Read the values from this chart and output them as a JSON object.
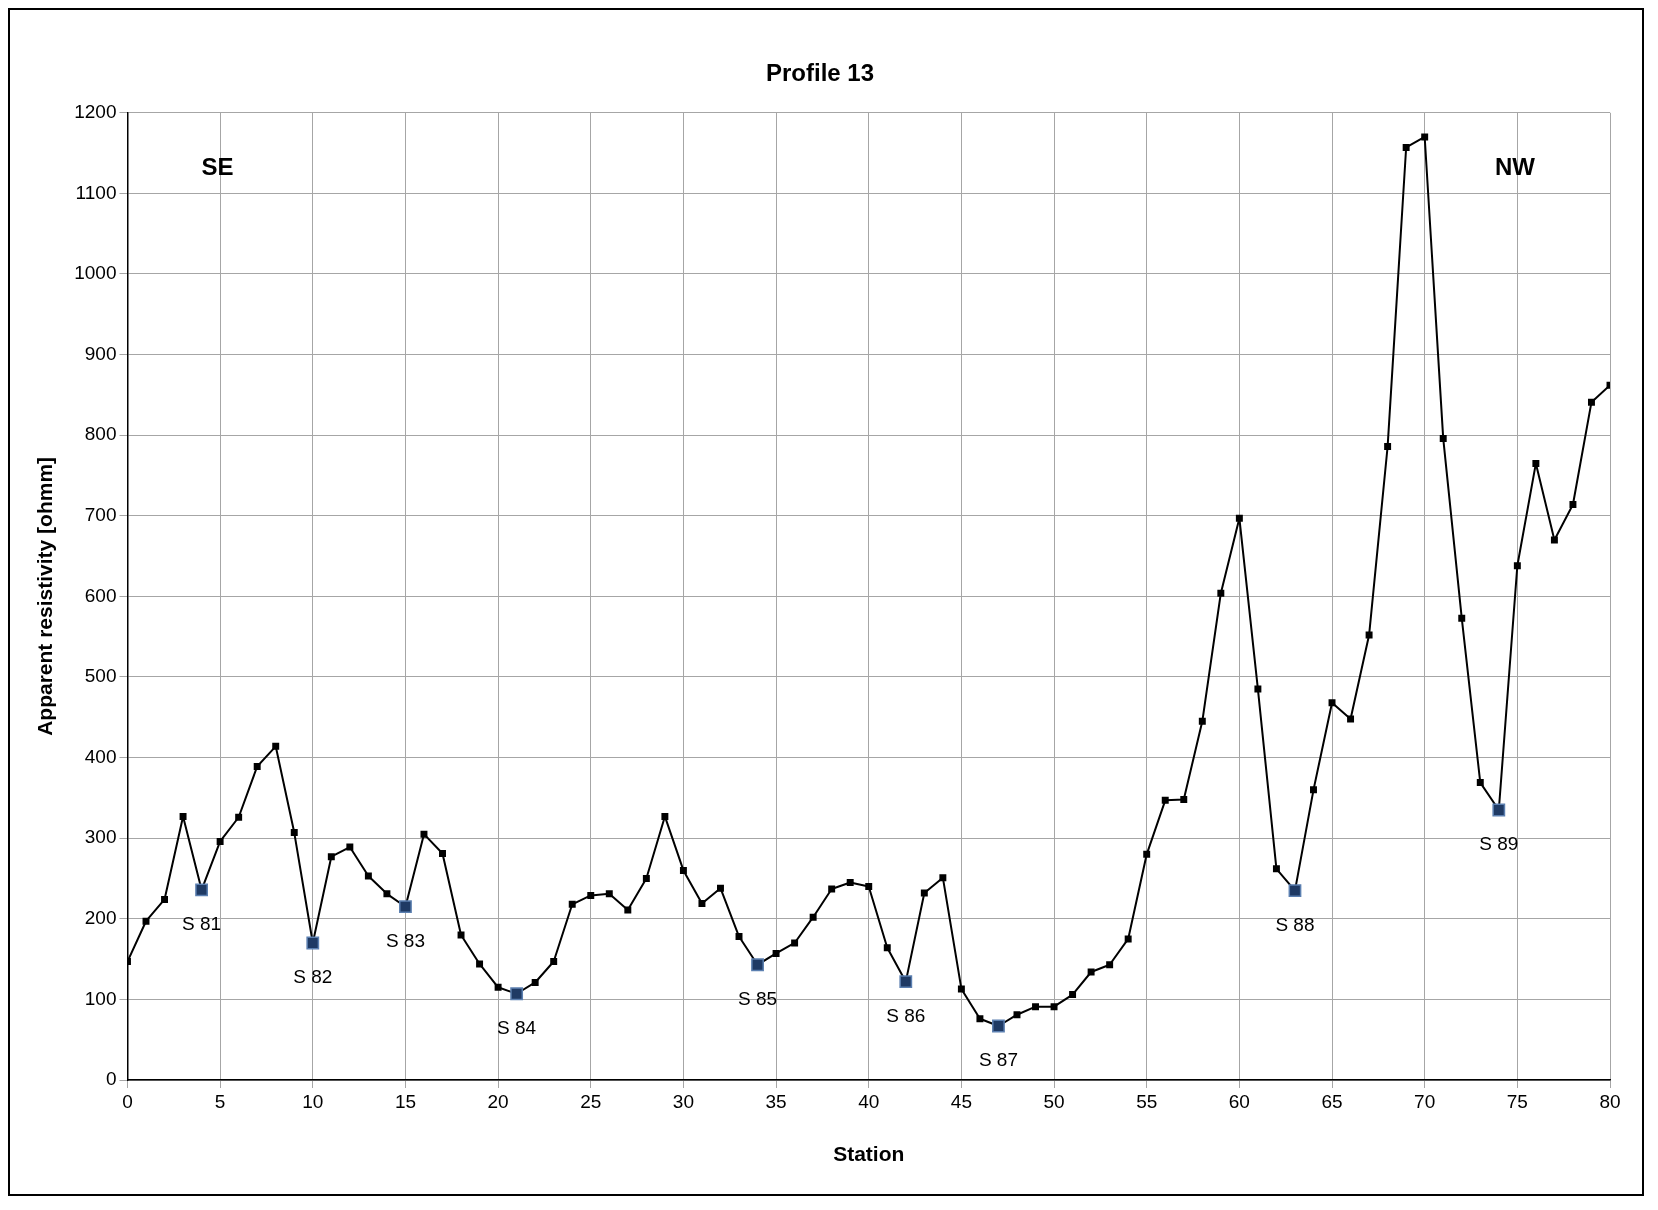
{
  "chart_data": {
    "type": "line",
    "title": "Profile 13",
    "xlabel": "Station",
    "ylabel": "Apparent resistivity [ohmm]",
    "x": [
      0,
      1,
      2,
      3,
      4,
      5,
      6,
      7,
      8,
      9,
      10,
      11,
      12,
      13,
      14,
      15,
      16,
      17,
      18,
      19,
      20,
      21,
      22,
      23,
      24,
      25,
      26,
      27,
      28,
      29,
      30,
      31,
      32,
      33,
      34,
      35,
      36,
      37,
      38,
      39,
      40,
      41,
      42,
      43,
      44,
      45,
      46,
      47,
      48,
      49,
      50,
      51,
      52,
      53,
      54,
      55,
      56,
      57,
      58,
      59,
      60,
      61,
      62,
      63,
      64,
      65,
      66,
      67,
      68,
      69,
      70,
      71,
      72,
      73,
      74,
      75,
      76,
      77,
      78,
      79,
      80
    ],
    "series": [
      {
        "color": "#000000",
        "marker": "square",
        "values": [
          147,
          197,
          224,
          327,
          236,
          296,
          326,
          389,
          414,
          307,
          170,
          277,
          289,
          253,
          231,
          215,
          305,
          281,
          180,
          144,
          115,
          107,
          121,
          147,
          218,
          229,
          231,
          211,
          250,
          327,
          260,
          219,
          238,
          178,
          143,
          157,
          170,
          202,
          237,
          245,
          240,
          164,
          122,
          232,
          251,
          113,
          76,
          67,
          81,
          91,
          91,
          106,
          134,
          143,
          175,
          280,
          347,
          348,
          445,
          604,
          697,
          485,
          262,
          235,
          360,
          468,
          448,
          552,
          786,
          1157,
          1170,
          796,
          573,
          369,
          335,
          638,
          765,
          670,
          714,
          841,
          862
        ]
      },
      {
        "type": "scatter",
        "color": "#1f3a64",
        "marker": "square",
        "x": [
          4,
          10,
          15,
          21,
          34,
          42,
          47,
          63,
          74
        ],
        "values": [
          236,
          170,
          215,
          107,
          143,
          122,
          67,
          235,
          335
        ]
      }
    ],
    "xlim": [
      0,
      80
    ],
    "xticks": [
      0,
      5,
      10,
      15,
      20,
      25,
      30,
      35,
      40,
      45,
      50,
      55,
      60,
      65,
      70,
      75,
      80
    ],
    "ylim": [
      0,
      1200
    ],
    "yticks": [
      0,
      100,
      200,
      300,
      400,
      500,
      600,
      700,
      800,
      900,
      1000,
      1100,
      1200
    ],
    "grid": true,
    "legend": false,
    "line_style": "solid",
    "annotations": [
      "SE",
      "NW",
      {
        "text": "S 81",
        "x": 4,
        "y": 236
      },
      {
        "text": "S 82",
        "x": 10,
        "y": 170
      },
      {
        "text": "S 83",
        "x": 15,
        "y": 215
      },
      {
        "text": "S 84",
        "x": 21,
        "y": 107
      },
      {
        "text": "S 85",
        "x": 34,
        "y": 143
      },
      {
        "text": "S 86",
        "x": 42,
        "y": 122
      },
      {
        "text": "S 87",
        "x": 47,
        "y": 67
      },
      {
        "text": "S 88",
        "x": 63,
        "y": 235
      },
      {
        "text": "S 89",
        "x": 74,
        "y": 335
      }
    ]
  }
}
